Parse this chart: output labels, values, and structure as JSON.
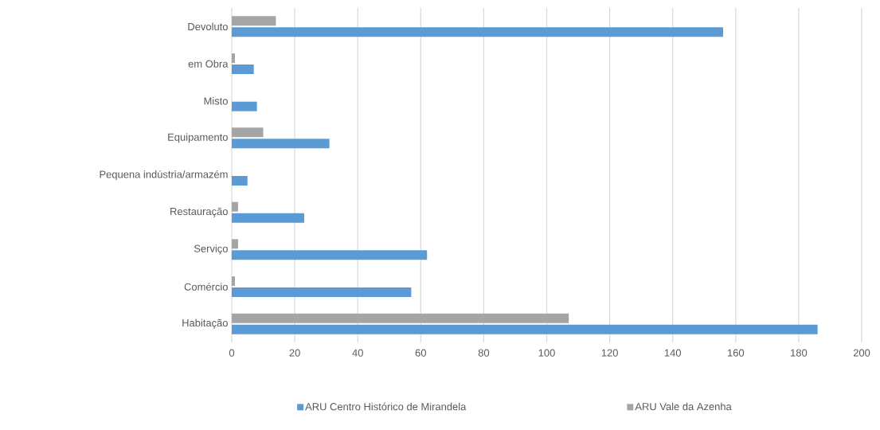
{
  "chart_data": {
    "type": "bar",
    "orientation": "horizontal",
    "categories": [
      "Devoluto",
      "em Obra",
      "Misto",
      "Equipamento",
      "Pequena indústria/armazém",
      "Restauração",
      "Serviço",
      "Comércio",
      "Habitação"
    ],
    "series": [
      {
        "name": "ARU Centro Histórico de Mirandela",
        "color": "#5b9bd5",
        "values": [
          156,
          7,
          8,
          31,
          5,
          23,
          62,
          57,
          186
        ]
      },
      {
        "name": "ARU Vale da Azenha",
        "color": "#a5a5a5",
        "values": [
          14,
          1,
          0,
          10,
          0,
          2,
          2,
          1,
          107
        ]
      }
    ],
    "xlim": [
      0,
      200
    ],
    "xticks": [
      0,
      20,
      40,
      60,
      80,
      100,
      120,
      140,
      160,
      180,
      200
    ],
    "grid": "x",
    "legend": "bottom"
  }
}
